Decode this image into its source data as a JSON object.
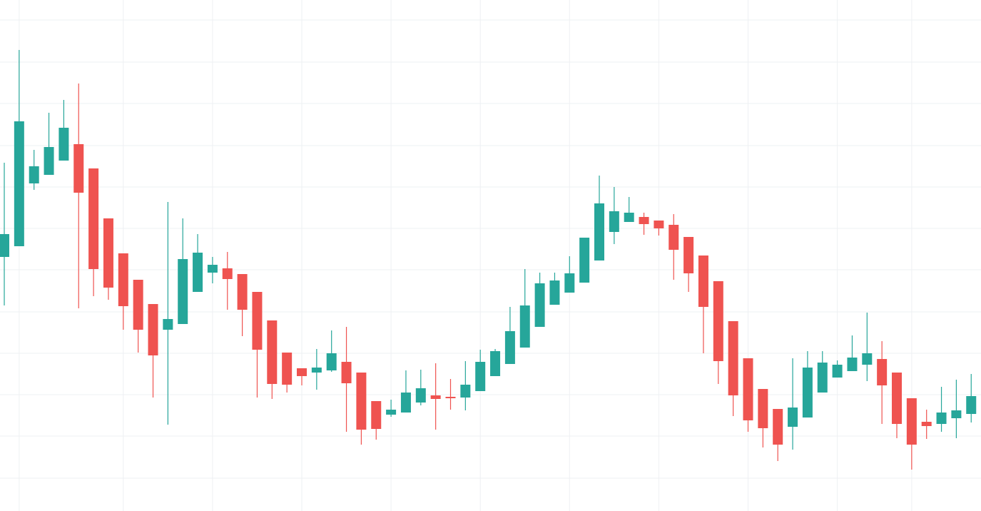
{
  "chart_data": {
    "type": "candlestick",
    "categories": [
      null,
      null,
      null,
      null,
      null,
      null,
      null,
      null,
      null,
      null,
      null,
      null,
      null,
      null,
      null,
      null,
      null,
      null,
      null,
      null,
      null,
      null,
      null,
      null,
      null,
      null,
      null,
      null,
      null,
      null,
      null,
      null,
      null,
      null,
      null,
      null,
      null,
      null,
      null,
      null,
      null,
      null,
      null,
      null,
      null,
      null,
      null,
      null,
      null,
      null,
      null,
      null,
      null,
      null,
      null,
      null,
      null,
      null,
      null,
      null,
      null,
      null,
      null,
      null,
      null,
      null
    ],
    "open": [
      356,
      371,
      459,
      471,
      491,
      514,
      480,
      410,
      361,
      324,
      290,
      254,
      262,
      307,
      334,
      340,
      332,
      307,
      267,
      222,
      200,
      194,
      197,
      209,
      194,
      154,
      135,
      138,
      152,
      162,
      160,
      159,
      168,
      189,
      206,
      229,
      258,
      289,
      306,
      320,
      351,
      391,
      405,
      412,
      407,
      401,
      384,
      358,
      322,
      266,
      214,
      171,
      143,
      118,
      131,
      166,
      187,
      196,
      205,
      213,
      194,
      158,
      125,
      122,
      130,
      136
    ],
    "high": [
      488,
      646,
      506,
      558,
      576,
      599,
      480,
      410,
      361,
      324,
      290,
      433,
      410,
      388,
      356,
      363,
      332,
      307,
      267,
      222,
      200,
      227,
      253,
      258,
      194,
      154,
      156,
      197,
      198,
      207,
      185,
      210,
      226,
      227,
      286,
      339,
      334,
      334,
      357,
      383,
      470,
      454,
      440,
      418,
      407,
      416,
      384,
      358,
      322,
      266,
      214,
      171,
      143,
      214,
      224,
      224,
      211,
      246,
      278,
      238,
      194,
      158,
      142,
      174,
      184,
      192
    ],
    "low": [
      288,
      371,
      450,
      471,
      491,
      284,
      301,
      296,
      254,
      222,
      159,
      121,
      262,
      307,
      319,
      282,
      245,
      159,
      157,
      166,
      176,
      170,
      195,
      111,
      93,
      100,
      132,
      138,
      148,
      114,
      142,
      141,
      168,
      189,
      206,
      229,
      258,
      289,
      306,
      320,
      351,
      374,
      405,
      387,
      386,
      324,
      307,
      221,
      178,
      133,
      111,
      89,
      70,
      86,
      131,
      166,
      187,
      196,
      182,
      122,
      102,
      58,
      101,
      111,
      102,
      124
    ],
    "close": [
      388,
      546,
      483,
      510,
      537,
      446,
      339,
      313,
      287,
      254,
      218,
      269,
      353,
      362,
      345,
      325,
      282,
      226,
      178,
      177,
      189,
      201,
      221,
      179,
      114,
      115,
      142,
      166,
      172,
      157,
      158,
      177,
      209,
      224,
      252,
      288,
      319,
      323,
      333,
      383,
      431,
      420,
      418,
      402,
      396,
      366,
      333,
      286,
      210,
      162,
      127,
      116,
      93,
      145,
      201,
      208,
      205,
      215,
      221,
      176,
      122,
      93,
      119,
      138,
      141,
      161
    ],
    "up_color": "#26a69a",
    "down_color": "#ef5350",
    "ylim": [
      0,
      716
    ],
    "yticks": [
      46,
      105,
      163,
      221,
      279,
      338,
      396,
      454,
      512,
      571,
      629,
      688
    ],
    "grid": true
  }
}
